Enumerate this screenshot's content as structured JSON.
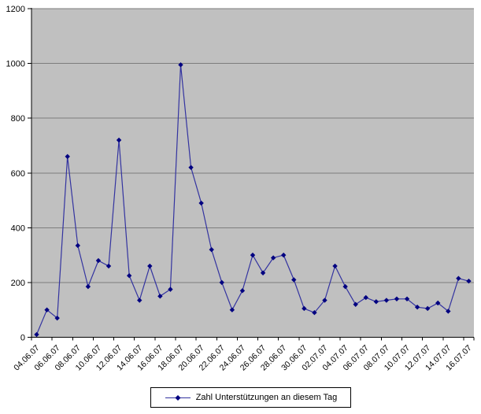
{
  "chart_data": {
    "type": "line",
    "title": "",
    "legend": "Zahl Unterstützungen an diesem Tag",
    "legend_position": "bottom-center",
    "x": [
      "04.06.07",
      "05.06.07",
      "06.06.07",
      "07.06.07",
      "08.06.07",
      "09.06.07",
      "10.06.07",
      "11.06.07",
      "12.06.07",
      "13.06.07",
      "14.06.07",
      "15.06.07",
      "16.06.07",
      "17.06.07",
      "18.06.07",
      "19.06.07",
      "20.06.07",
      "21.06.07",
      "22.06.07",
      "23.06.07",
      "24.06.07",
      "25.06.07",
      "26.06.07",
      "27.06.07",
      "28.06.07",
      "29.06.07",
      "30.06.07",
      "01.07.07",
      "02.07.07",
      "03.07.07",
      "04.07.07",
      "05.07.07",
      "06.07.07",
      "07.07.07",
      "08.07.07",
      "09.07.07",
      "10.07.07",
      "11.07.07",
      "12.07.07",
      "13.07.07",
      "14.07.07",
      "15.07.07",
      "16.07.07"
    ],
    "values": [
      10,
      100,
      70,
      660,
      335,
      185,
      280,
      260,
      720,
      225,
      135,
      260,
      150,
      175,
      995,
      620,
      490,
      320,
      200,
      100,
      170,
      300,
      235,
      290,
      300,
      210,
      105,
      90,
      135,
      260,
      185,
      120,
      145,
      130,
      135,
      140,
      140,
      110,
      105,
      125,
      95,
      215,
      205
    ],
    "x_label_every": 2,
    "x_tick_labels": [
      "04.06.07",
      "06.06.07",
      "08.06.07",
      "10.06.07",
      "12.06.07",
      "14.06.07",
      "16.06.07",
      "18.06.07",
      "20.06.07",
      "22.06.07",
      "24.06.07",
      "26.06.07",
      "28.06.07",
      "30.06.07",
      "02.07.07",
      "04.07.07",
      "06.07.07",
      "08.07.07",
      "10.07.07",
      "12.07.07",
      "14.07.07",
      "16.07.07"
    ],
    "y_ticks": [
      0,
      200,
      400,
      600,
      800,
      1000,
      1200
    ],
    "ylim": [
      0,
      1200
    ],
    "grid": true,
    "colors": {
      "plot_bg": "#c0c0c0",
      "page_bg": "#ffffff",
      "line": "#3333a0",
      "marker": "#000080",
      "gridline": "#7d7d7d",
      "axis": "#000000",
      "text": "#000000"
    }
  }
}
